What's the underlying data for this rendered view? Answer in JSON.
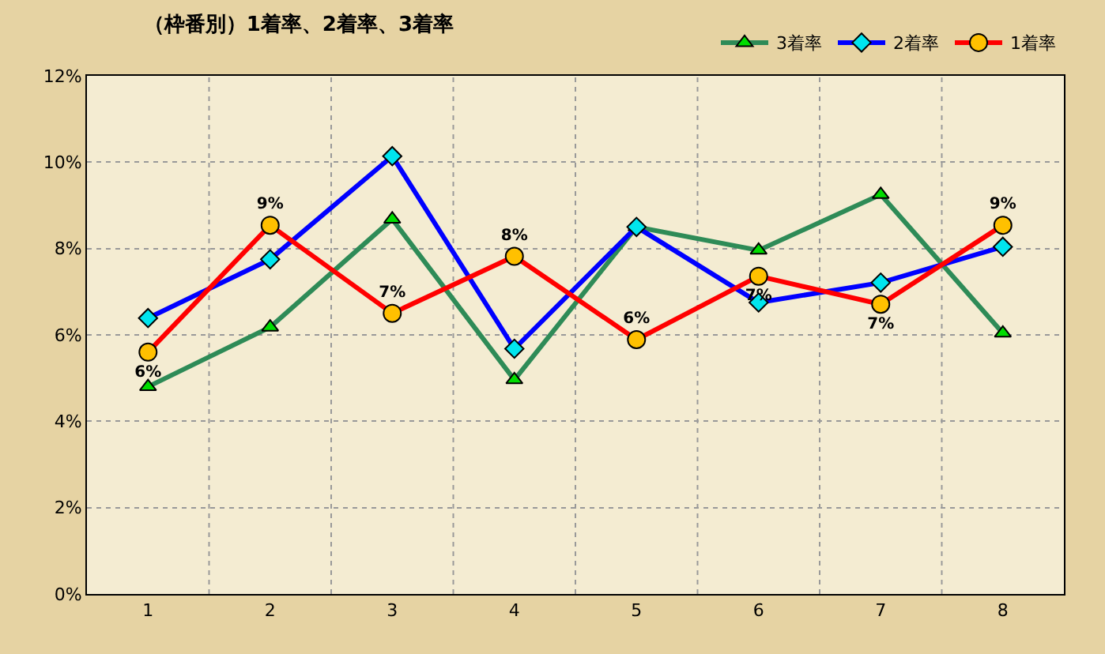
{
  "chart_data": {
    "type": "line",
    "title": "（枠番別）1着率、2着率、3着率",
    "categories": [
      "1",
      "2",
      "3",
      "4",
      "5",
      "6",
      "7",
      "8"
    ],
    "series": [
      {
        "name": "3着率",
        "color": "#2e8b57",
        "marker": "triangle",
        "values": [
          4.8,
          6.18,
          8.68,
          4.96,
          8.5,
          7.96,
          9.25,
          6.04
        ]
      },
      {
        "name": "2着率",
        "color": "#0000ff",
        "marker": "diamond",
        "values": [
          6.39,
          7.75,
          10.14,
          5.68,
          8.5,
          6.75,
          7.21,
          8.04
        ]
      },
      {
        "name": "1着率",
        "color": "#ff0000",
        "marker": "circle",
        "values": [
          5.6,
          8.54,
          6.5,
          7.82,
          5.89,
          7.36,
          6.71,
          8.54
        ],
        "value_labels": [
          "6%",
          "9%",
          "7%",
          "8%",
          "6%",
          "7%",
          "7%",
          "9%"
        ]
      }
    ],
    "ylim": [
      0,
      12
    ],
    "yticks": [
      {
        "value": 0,
        "label": "0%"
      },
      {
        "value": 2,
        "label": "2%"
      },
      {
        "value": 4,
        "label": "4%"
      },
      {
        "value": 6,
        "label": "6%"
      },
      {
        "value": 8,
        "label": "8%"
      },
      {
        "value": 10,
        "label": "10%"
      },
      {
        "value": 12,
        "label": "12%"
      }
    ],
    "grid": true,
    "legend": "top right",
    "line_style": "solid"
  }
}
